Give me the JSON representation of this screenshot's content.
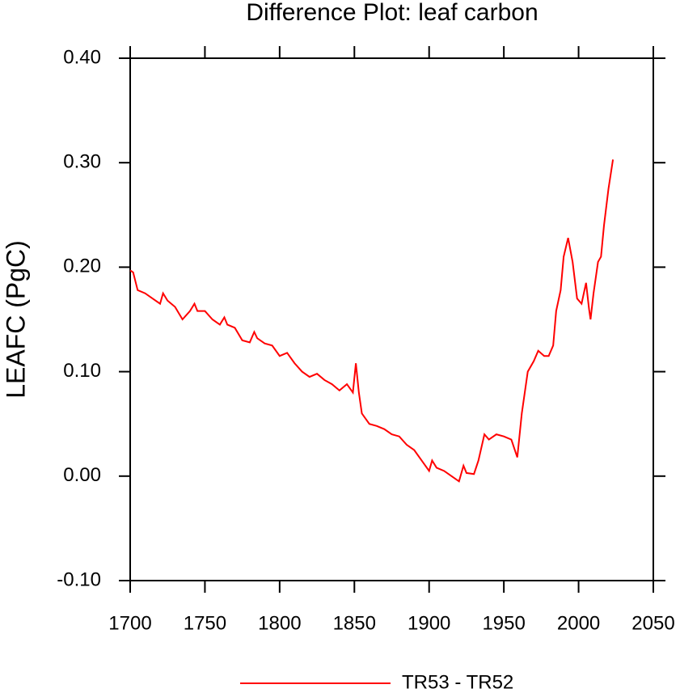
{
  "chart_data": {
    "type": "line",
    "title": "Difference Plot: leaf carbon",
    "y_label": "LEAFC  (PgC)",
    "x": [
      1700,
      1702,
      1705,
      1710,
      1715,
      1720,
      1722,
      1725,
      1730,
      1735,
      1740,
      1743,
      1745,
      1750,
      1755,
      1760,
      1763,
      1765,
      1770,
      1775,
      1780,
      1783,
      1785,
      1790,
      1795,
      1800,
      1805,
      1810,
      1815,
      1820,
      1825,
      1830,
      1835,
      1840,
      1845,
      1849,
      1851,
      1853,
      1855,
      1860,
      1865,
      1870,
      1875,
      1880,
      1885,
      1890,
      1895,
      1900,
      1902,
      1905,
      1910,
      1915,
      1920,
      1923,
      1925,
      1930,
      1933,
      1937,
      1940,
      1945,
      1950,
      1955,
      1959,
      1962,
      1966,
      1970,
      1973,
      1977,
      1980,
      1983,
      1985,
      1988,
      1990,
      1993,
      1996,
      1999,
      2002,
      2005,
      2007,
      2008,
      2010,
      2013,
      2015,
      2017,
      2020,
      2023
    ],
    "series": [
      {
        "name": "TR53 - TR52",
        "color": "#ff0000",
        "values": [
          0.197,
          0.195,
          0.178,
          0.175,
          0.17,
          0.165,
          0.175,
          0.168,
          0.162,
          0.15,
          0.158,
          0.165,
          0.158,
          0.158,
          0.15,
          0.145,
          0.152,
          0.145,
          0.142,
          0.13,
          0.128,
          0.138,
          0.132,
          0.127,
          0.125,
          0.115,
          0.118,
          0.108,
          0.1,
          0.095,
          0.098,
          0.092,
          0.088,
          0.082,
          0.088,
          0.08,
          0.108,
          0.08,
          0.06,
          0.05,
          0.048,
          0.045,
          0.04,
          0.038,
          0.03,
          0.025,
          0.015,
          0.005,
          0.015,
          0.008,
          0.005,
          0.0,
          -0.005,
          0.01,
          0.003,
          0.002,
          0.015,
          0.04,
          0.035,
          0.04,
          0.038,
          0.035,
          0.018,
          0.06,
          0.1,
          0.11,
          0.12,
          0.115,
          0.115,
          0.125,
          0.158,
          0.178,
          0.21,
          0.228,
          0.205,
          0.17,
          0.165,
          0.185,
          0.16,
          0.15,
          0.175,
          0.205,
          0.21,
          0.24,
          0.275,
          0.303
        ]
      }
    ],
    "xlim": [
      1700,
      2050
    ],
    "xticks": [
      1700,
      1750,
      1800,
      1850,
      1900,
      1950,
      2000,
      2050
    ],
    "ylim": [
      -0.1,
      0.4
    ],
    "yticks": [
      {
        "value": -0.1,
        "label": "-0.10"
      },
      {
        "value": 0.0,
        "label": "0.00"
      },
      {
        "value": 0.1,
        "label": "0.10"
      },
      {
        "value": 0.2,
        "label": "0.20"
      },
      {
        "value": 0.3,
        "label": "0.30"
      },
      {
        "value": 0.4,
        "label": "0.40"
      }
    ]
  }
}
